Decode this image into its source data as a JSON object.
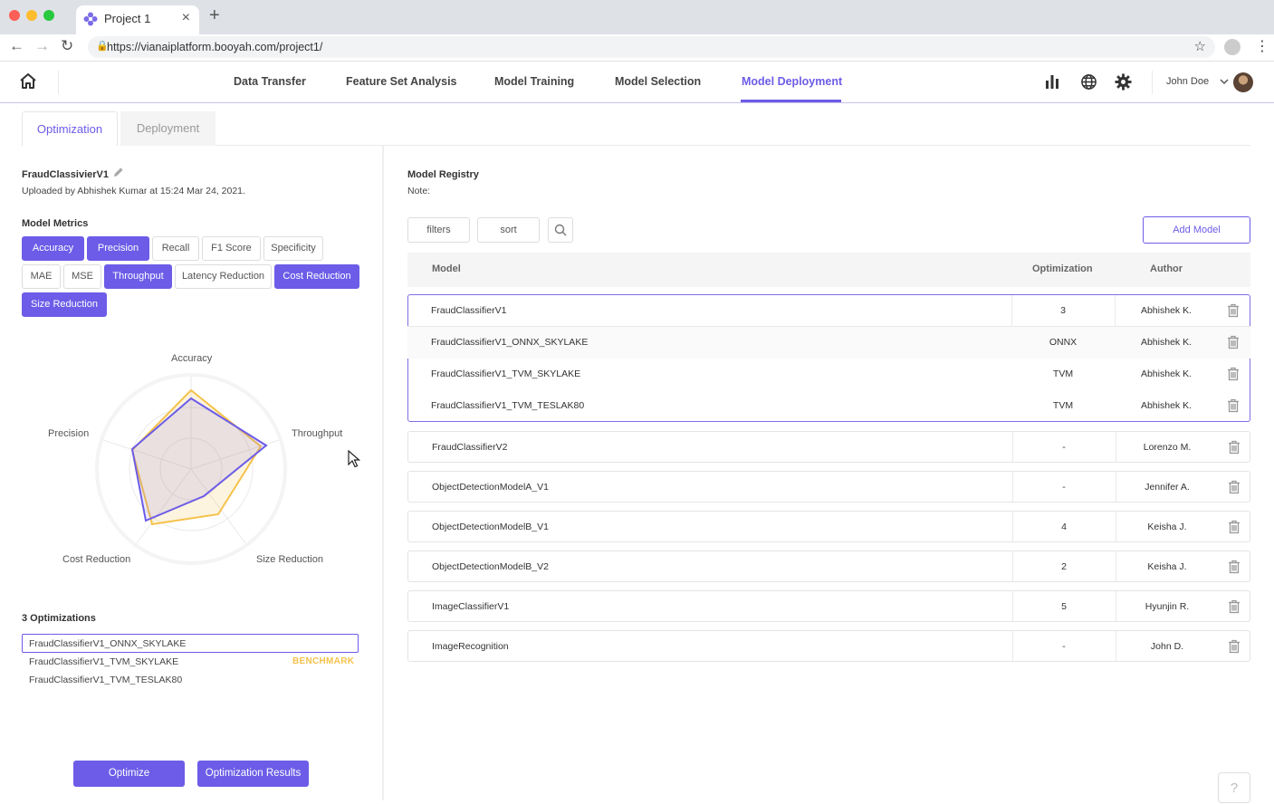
{
  "browser": {
    "tab_title": "Project 1",
    "tab_close": "×",
    "new_tab": "+",
    "url": "https://vianaiplatform.booyah.com/project1/"
  },
  "header": {
    "nav": [
      "Data Transfer",
      "Feature Set Analysis",
      "Model Training",
      "Model Selection",
      "Model Deployment"
    ],
    "active_nav": "Model Deployment",
    "user_name": "John Doe"
  },
  "subtabs": {
    "optimization": "Optimization",
    "deployment": "Deployment"
  },
  "left": {
    "model_name": "FraudClassivierV1",
    "upload_info": "Uploaded by Abhishek Kumar at 15:24 Mar 24, 2021.",
    "metrics_title": "Model Metrics",
    "metrics": [
      {
        "label": "Accuracy",
        "selected": true
      },
      {
        "label": "Precision",
        "selected": true
      },
      {
        "label": "Recall",
        "selected": false
      },
      {
        "label": "F1 Score",
        "selected": false
      },
      {
        "label": "Specificity",
        "selected": false
      },
      {
        "label": "MAE",
        "selected": false
      },
      {
        "label": "MSE",
        "selected": false
      },
      {
        "label": "Throughput",
        "selected": true
      },
      {
        "label": "Latency Reduction",
        "selected": false
      },
      {
        "label": "Cost Reduction",
        "selected": true
      },
      {
        "label": "Size Reduction",
        "selected": true
      }
    ],
    "radar": {
      "axes": [
        "Accuracy",
        "Throughput",
        "Size Reduction",
        "Cost Reduction",
        "Precision"
      ],
      "series_colors": [
        "#f5c24c",
        "#6c5ce7"
      ]
    },
    "optimizations_title": "3 Optimizations",
    "optimizations": [
      "FraudClassifierV1_ONNX_SKYLAKE",
      "FraudClassifierV1_TVM_SKYLAKE",
      "FraudClassifierV1_TVM_TESLAK80"
    ],
    "benchmark_label": "BENCHMARK",
    "optimize_button": "Optimize",
    "results_button": "Optimization Results"
  },
  "right": {
    "registry_title": "Model Registry",
    "note_label": "Note:",
    "filters_label": "filters",
    "sort_label": "sort",
    "add_model_label": "Add Model",
    "columns": [
      "Model",
      "Optimization",
      "Author"
    ],
    "group_rows": [
      {
        "model": "FraudClassifierV1",
        "optimization": "3",
        "author": "Abhishek K."
      },
      {
        "model": "FraudClassifierV1_ONNX_SKYLAKE",
        "optimization": "ONNX",
        "author": "Abhishek K."
      },
      {
        "model": "FraudClassifierV1_TVM_SKYLAKE",
        "optimization": "TVM",
        "author": "Abhishek K."
      },
      {
        "model": "FraudClassifierV1_TVM_TESLAK80",
        "optimization": "TVM",
        "author": "Abhishek K."
      }
    ],
    "rows": [
      {
        "model": "FraudClassifierV2",
        "optimization": "-",
        "author": "Lorenzo M."
      },
      {
        "model": "ObjectDetectionModelA_V1",
        "optimization": "-",
        "author": "Jennifer A."
      },
      {
        "model": "ObjectDetectionModelB_V1",
        "optimization": "4",
        "author": "Keisha J."
      },
      {
        "model": "ObjectDetectionModelB_V2",
        "optimization": "2",
        "author": "Keisha J."
      },
      {
        "model": "ImageClassifierV1",
        "optimization": "5",
        "author": "Hyunjin R."
      },
      {
        "model": "ImageRecognition",
        "optimization": "-",
        "author": "John D."
      }
    ],
    "help_label": "?"
  },
  "colors": {
    "accent": "#6c5ce7",
    "benchmark": "#f5c24c"
  }
}
